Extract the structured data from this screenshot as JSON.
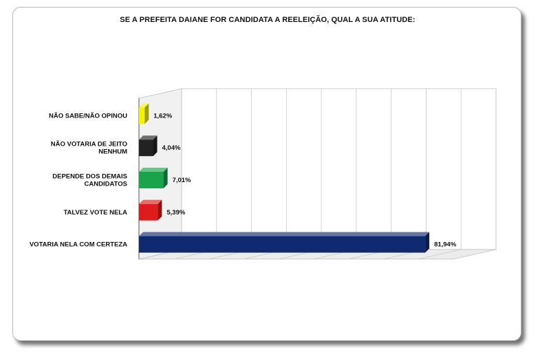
{
  "chart_data": {
    "type": "bar",
    "orientation": "horizontal",
    "title": "SE A PREFEITA DAIANE FOR CANDIDATA A REELEIÇÃO, QUAL A SUA ATITUDE:",
    "categories": [
      "NÃO SABE/NÃO OPINOU",
      "NÃO VOTARIA DE JEITO NENHUM",
      "DEPENDE DOS DEMAIS CANDIDATOS",
      "TALVEZ VOTE NELA",
      "VOTARIA NELA COM CERTEZA"
    ],
    "category_lines": [
      [
        "NÃO SABE/NÃO OPINOU"
      ],
      [
        "NÃO VOTARIA DE JEITO",
        "NENHUM"
      ],
      [
        "DEPENDE DOS DEMAIS",
        "CANDIDATOS"
      ],
      [
        "TALVEZ VOTE NELA"
      ],
      [
        "VOTARIA NELA COM CERTEZA"
      ]
    ],
    "values": [
      1.62,
      4.04,
      7.01,
      5.39,
      81.94
    ],
    "value_labels": [
      "1,62%",
      "4,04%",
      "7,01%",
      "5,39%",
      "81,94%"
    ],
    "colors": [
      "#f2f20a",
      "#222222",
      "#1aa34a",
      "#e01b1b",
      "#0f2a6e"
    ],
    "xlim": [
      0,
      90
    ],
    "grid": true,
    "style": "3d"
  }
}
